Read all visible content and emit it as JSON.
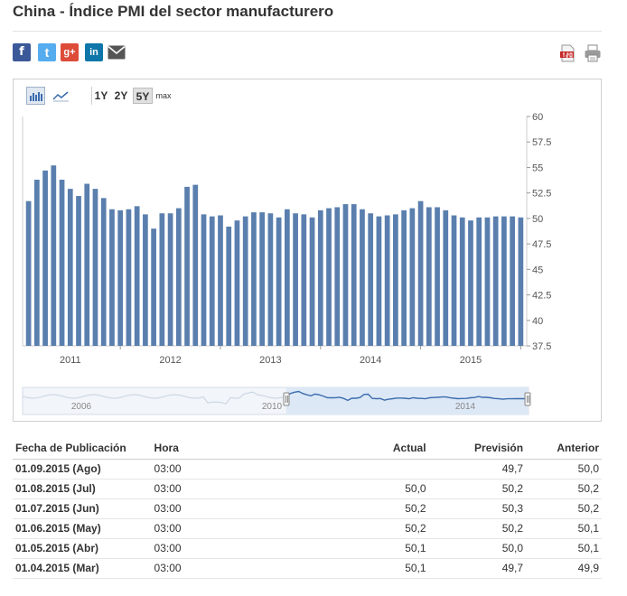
{
  "page": {
    "title": "China - Índice PMI del sector manufacturero"
  },
  "share": {
    "facebook": "f",
    "twitter": "t",
    "google_plus": "g+",
    "linkedin": "in"
  },
  "toolbar": {
    "ranges": [
      "1Y",
      "2Y",
      "5Y",
      "max"
    ],
    "active_range": "5Y"
  },
  "colors": {
    "bar": "#5a7fae",
    "navigator_line": "#3b6cae",
    "navigator_fill": "#dce8f6",
    "up": "#3aa22d",
    "down": "#d42121"
  },
  "chart_data": {
    "type": "bar",
    "ylim": [
      37.5,
      60
    ],
    "yticks": [
      "60",
      "57.5",
      "55",
      "52.5",
      "50",
      "47.5",
      "45",
      "42.5",
      "40",
      "37.5"
    ],
    "x_tick_labels": [
      "2011",
      "2012",
      "2013",
      "2014",
      "2015"
    ],
    "grid": false,
    "values": [
      51.7,
      53.8,
      54.7,
      55.2,
      53.8,
      52.9,
      52.2,
      53.4,
      52.9,
      52.0,
      50.9,
      50.8,
      50.9,
      51.2,
      50.4,
      49.0,
      50.5,
      50.5,
      51.0,
      53.1,
      53.3,
      50.4,
      50.2,
      50.3,
      49.2,
      49.8,
      50.2,
      50.6,
      50.6,
      50.5,
      50.1,
      50.9,
      50.5,
      50.4,
      50.1,
      50.8,
      51.0,
      51.1,
      51.4,
      51.4,
      50.9,
      50.5,
      50.2,
      50.3,
      50.4,
      50.8,
      51.0,
      51.7,
      51.1,
      51.1,
      50.8,
      50.3,
      50.1,
      49.8,
      50.1,
      50.1,
      50.2,
      50.2,
      50.2,
      50.1
    ]
  },
  "navigator": {
    "labels": [
      "2006",
      "2010",
      "2014"
    ]
  },
  "table": {
    "headers": {
      "date": "Fecha de Publicación",
      "time": "Hora",
      "actual": "Actual",
      "forecast": "Previsión",
      "previous": "Anterior"
    },
    "rows": [
      {
        "date": "01.09.2015 (Ago)",
        "time": "03:00",
        "actual": "",
        "trend": "",
        "forecast": "49,7",
        "previous": "50,0"
      },
      {
        "date": "01.08.2015 (Jul)",
        "time": "03:00",
        "actual": "50,0",
        "trend": "down",
        "forecast": "50,2",
        "previous": "50,2"
      },
      {
        "date": "01.07.2015 (Jun)",
        "time": "03:00",
        "actual": "50,2",
        "trend": "down",
        "forecast": "50,3",
        "previous": "50,2"
      },
      {
        "date": "01.06.2015 (May)",
        "time": "03:00",
        "actual": "50,2",
        "trend": "",
        "forecast": "50,2",
        "previous": "50,1"
      },
      {
        "date": "01.05.2015 (Abr)",
        "time": "03:00",
        "actual": "50,1",
        "trend": "up",
        "forecast": "50,0",
        "previous": "50,1"
      },
      {
        "date": "01.04.2015 (Mar)",
        "time": "03:00",
        "actual": "50,1",
        "trend": "up",
        "forecast": "49,7",
        "previous": "49,9"
      }
    ]
  }
}
